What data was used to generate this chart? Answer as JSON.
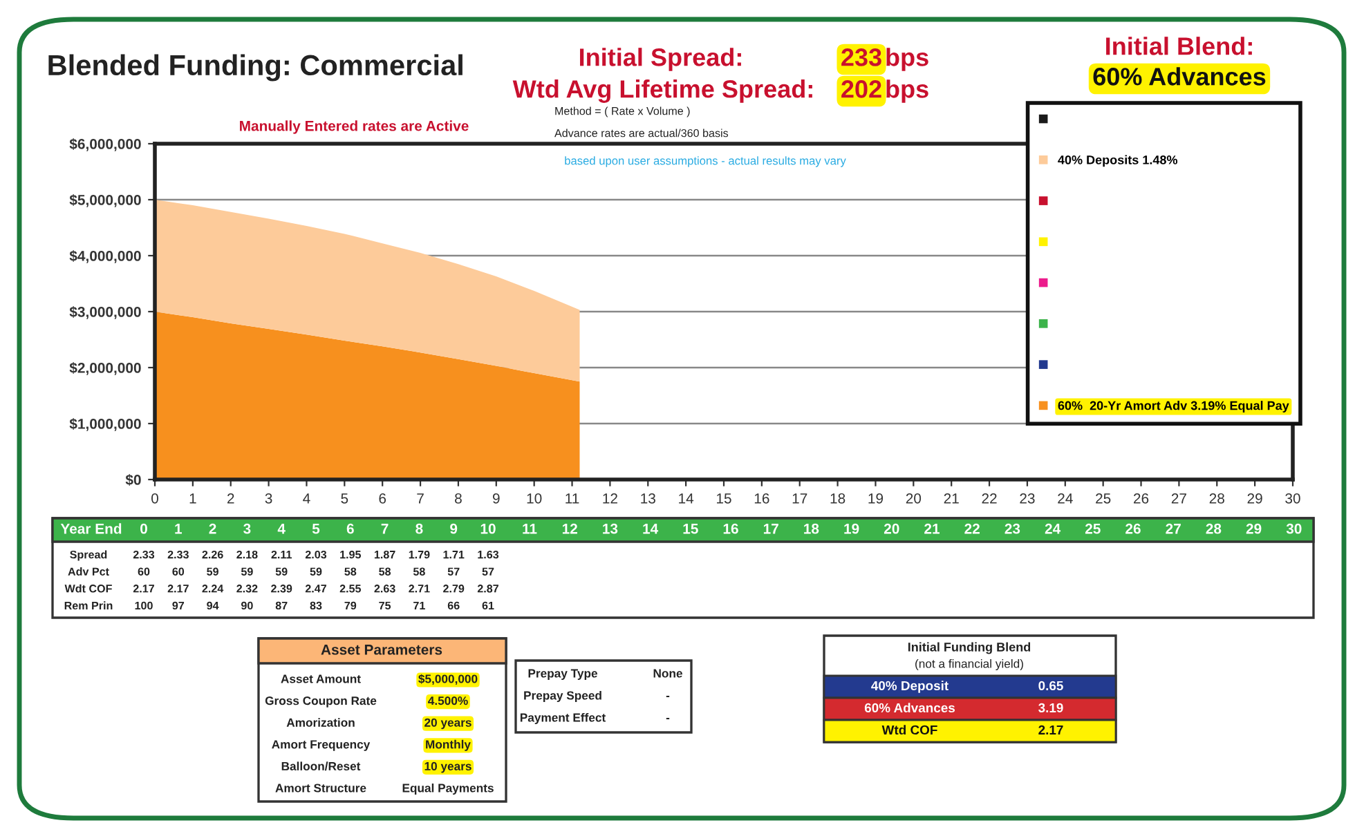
{
  "chart_data": {
    "type": "area",
    "stacked": true,
    "title": "Blended Funding: Commercial",
    "x": [
      0,
      1,
      2,
      3,
      4,
      5,
      6,
      7,
      8,
      9,
      10,
      11.2
    ],
    "series": [
      {
        "name": "60%  20-Yr Amort Adv 3.19% Equal Pay",
        "color": "#f7901e",
        "values": [
          3000000,
          2900000,
          2790000,
          2690000,
          2590000,
          2480000,
          2380000,
          2270000,
          2150000,
          2030000,
          1900000,
          1750000
        ]
      },
      {
        "color": "#233a8f",
        "values": [
          null,
          null,
          null,
          null,
          null,
          null,
          null,
          null,
          null,
          null,
          null,
          null
        ]
      },
      {
        "color": "#3cb34a",
        "values": [
          null,
          null,
          null,
          null,
          null,
          null,
          null,
          null,
          null,
          null,
          null,
          null
        ]
      },
      {
        "color": "#ec1c8c",
        "values": [
          null,
          null,
          null,
          null,
          null,
          null,
          null,
          null,
          null,
          null,
          null,
          null
        ]
      },
      {
        "color": "#fff200",
        "values": [
          null,
          null,
          null,
          null,
          null,
          null,
          null,
          null,
          null,
          null,
          null,
          null
        ]
      },
      {
        "color": "#c8102e",
        "values": [
          null,
          null,
          null,
          null,
          null,
          null,
          null,
          null,
          null,
          null,
          null,
          null
        ]
      },
      {
        "name": "40% Deposits 1.48%",
        "color": "#fdcb9a",
        "values": [
          2000000,
          2000000,
          1990000,
          1970000,
          1940000,
          1910000,
          1840000,
          1780000,
          1700000,
          1600000,
          1470000,
          1280000
        ]
      },
      {
        "color": "#1a1a1a",
        "values": [
          null,
          null,
          null,
          null,
          null,
          null,
          null,
          null,
          null,
          null,
          null,
          null
        ]
      }
    ],
    "xlim": [
      0,
      30
    ],
    "xticks": [
      0,
      1,
      2,
      3,
      4,
      5,
      6,
      7,
      8,
      9,
      10,
      11,
      12,
      13,
      14,
      15,
      16,
      17,
      18,
      19,
      20,
      21,
      22,
      23,
      24,
      25,
      26,
      27,
      28,
      29,
      30
    ],
    "ylim": [
      0,
      6000000
    ],
    "yticks": [
      {
        "value": 0,
        "label": "$0"
      },
      {
        "value": 1000000,
        "label": "$1,000,000"
      },
      {
        "value": 2000000,
        "label": "$2,000,000"
      },
      {
        "value": 3000000,
        "label": "$3,000,000"
      },
      {
        "value": 4000000,
        "label": "$4,000,000"
      },
      {
        "value": 5000000,
        "label": "$5,000,000"
      },
      {
        "value": 6000000,
        "label": "$6,000,000"
      }
    ],
    "grid": "y",
    "legend": "top right",
    "annotations": [
      "Initial Spread:",
      "233",
      "bps",
      "Wtd Avg Lifetime Spread:",
      "202",
      "bps",
      "Initial Blend:",
      "60% Advances",
      "Manually Entered rates are Active",
      "Method = ( Rate x Volume )",
      "Advance rates are actual/360 basis",
      "based upon user assumptions - actual results may vary",
      "Year End",
      "0",
      "1",
      "2",
      "3",
      "4",
      "5",
      "6",
      "7",
      "8",
      "9",
      "10",
      "11",
      "12",
      "13",
      "14",
      "15",
      "16",
      "17",
      "18",
      "19",
      "20",
      "21",
      "22",
      "23",
      "24",
      "25",
      "26",
      "27",
      "28",
      "29",
      "30",
      "Spread",
      "2.33",
      "2.33",
      "2.26",
      "2.18",
      "2.11",
      "2.03",
      "1.95",
      "1.87",
      "1.79",
      "1.71",
      "1.63",
      "Adv Pct",
      "60",
      "60",
      "59",
      "59",
      "59",
      "59",
      "58",
      "58",
      "58",
      "57",
      "57",
      "Wdt COF",
      "2.17",
      "2.17",
      "2.24",
      "2.32",
      "2.39",
      "2.47",
      "2.55",
      "2.63",
      "2.71",
      "2.79",
      "2.87",
      "Rem Prin",
      "100",
      "97",
      "94",
      "90",
      "87",
      "83",
      "79",
      "75",
      "71",
      "66",
      "61",
      "Asset Parameters",
      "Asset Amount",
      "$5,000,000",
      "Gross Coupon Rate",
      "4.500%",
      "Amorization",
      "20 years",
      "Amort Frequency",
      "Monthly",
      "Balloon/Reset",
      "10 years",
      "Amort Structure",
      "Equal Payments",
      "Prepay Type",
      "None",
      "Prepay Speed",
      "-",
      "Payment Effect",
      "-",
      "Initial Funding Blend",
      "(not a financial yield)",
      "40% Deposit",
      "0.65",
      "60% Advances",
      "3.19",
      "Wtd COF",
      "2.17"
    ]
  }
}
